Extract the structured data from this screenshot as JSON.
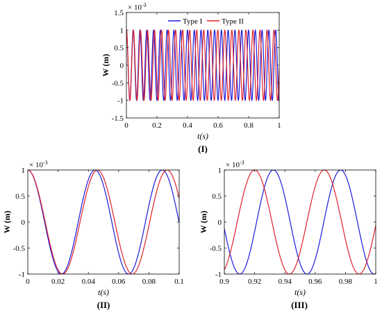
{
  "chart_data": [
    {
      "type": "line",
      "panel_label": "(I)",
      "xlabel": "t(s)",
      "ylabel": "W (m)",
      "y_exponent": "× 10^-3",
      "xlim": [
        0,
        1
      ],
      "ylim": [
        -1.5,
        1.5
      ],
      "x_ticks": [
        "0",
        "0.2",
        "0.4",
        "0.6",
        "0.8",
        "1"
      ],
      "y_ticks": [
        "-1.5",
        "-1",
        "-0.5",
        "0",
        "0.5",
        "1",
        "1.5"
      ],
      "legend": "top-center",
      "grid": false,
      "series": [
        {
          "name": "Type I",
          "color": "#1a1adb",
          "amplitude": 1,
          "period": 0.0444
        },
        {
          "name": "Type II",
          "color": "#e0202a",
          "amplitude": 1,
          "period": 0.046
        }
      ]
    },
    {
      "type": "line",
      "panel_label": "(II)",
      "xlabel": "t(s)",
      "ylabel": "W (m)",
      "y_exponent": "× 10^-3",
      "xlim": [
        0,
        0.1
      ],
      "ylim": [
        -1,
        1
      ],
      "x_ticks": [
        "0",
        "0.02",
        "0.04",
        "0.06",
        "0.08",
        "0.1"
      ],
      "y_ticks": [
        "-1",
        "-0.5",
        "0",
        "0.5",
        "1"
      ],
      "grid": false,
      "series": [
        {
          "color": "#1a1adb",
          "amplitude": 1,
          "period": 0.0444
        },
        {
          "color": "#e0202a",
          "amplitude": 1,
          "period": 0.046
        }
      ]
    },
    {
      "type": "line",
      "panel_label": "(III)",
      "xlabel": "t(s)",
      "ylabel": "W (m)",
      "y_exponent": "× 10^-3",
      "xlim": [
        0.9,
        1
      ],
      "ylim": [
        -1,
        1
      ],
      "x_ticks": [
        "0.9",
        "0.92",
        "0.94",
        "0.96",
        "0.98",
        "1"
      ],
      "y_ticks": [
        "-1",
        "-0.5",
        "0",
        "0.5",
        "1"
      ],
      "grid": false,
      "series": [
        {
          "color": "#1a1adb",
          "amplitude": 1,
          "period": 0.0444
        },
        {
          "color": "#e0202a",
          "amplitude": 1,
          "period": 0.046
        }
      ]
    }
  ]
}
